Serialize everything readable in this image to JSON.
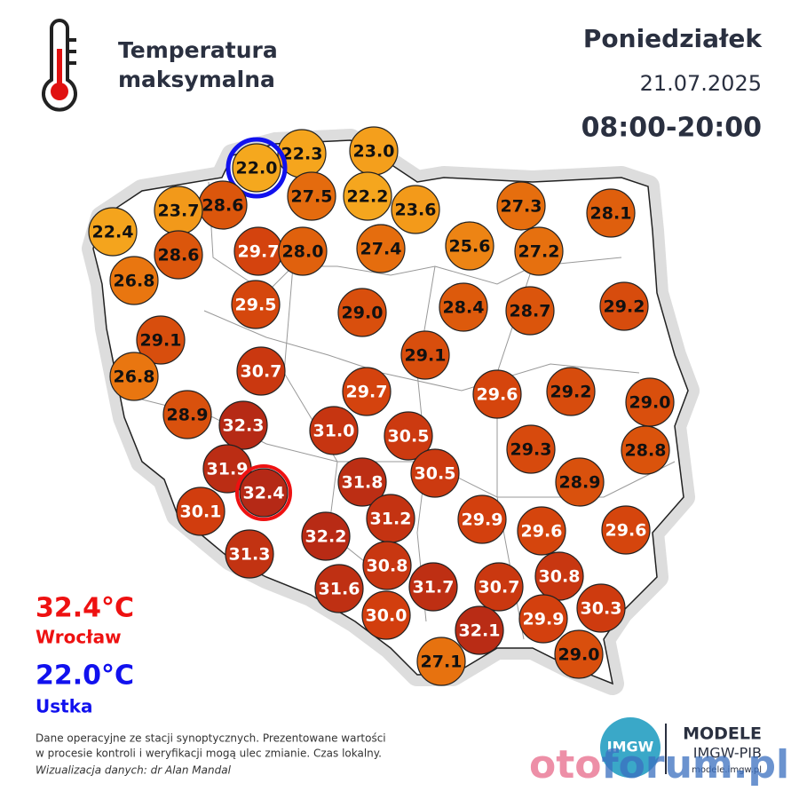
{
  "header": {
    "title_lines": [
      "Temperatura",
      "maksymalna"
    ],
    "day": "Poniedziałek",
    "date": "21.07.2025",
    "hours": "08:00-20:00"
  },
  "extremes": {
    "max": {
      "label": "32.4°C",
      "station": "Wrocław",
      "color": "#ee1111"
    },
    "min": {
      "label": "22.0°C",
      "station": "Ustka",
      "color": "#1111ee"
    }
  },
  "stations": [
    {
      "value": 22.3,
      "label": "22.3"
    },
    {
      "value": 23,
      "label": "23.0"
    },
    {
      "value": 22,
      "label": "22.0"
    },
    {
      "value": 27.5,
      "label": "27.5"
    },
    {
      "value": 22.2,
      "label": "22.2"
    },
    {
      "value": 28.6,
      "label": "28.6"
    },
    {
      "value": 23.7,
      "label": "23.7"
    },
    {
      "value": 23.6,
      "label": "23.6"
    },
    {
      "value": 27.3,
      "label": "27.3"
    },
    {
      "value": 28.1,
      "label": "28.1"
    },
    {
      "value": 22.4,
      "label": "22.4"
    },
    {
      "value": 28.6,
      "label": "28.6"
    },
    {
      "value": 29.7,
      "label": "29.7"
    },
    {
      "value": 28,
      "label": "28.0"
    },
    {
      "value": 27.4,
      "label": "27.4"
    },
    {
      "value": 25.6,
      "label": "25.6"
    },
    {
      "value": 27.2,
      "label": "27.2"
    },
    {
      "value": 26.8,
      "label": "26.8"
    },
    {
      "value": 29.5,
      "label": "29.5"
    },
    {
      "value": 29,
      "label": "29.0"
    },
    {
      "value": 28.4,
      "label": "28.4"
    },
    {
      "value": 28.7,
      "label": "28.7"
    },
    {
      "value": 29.2,
      "label": "29.2"
    },
    {
      "value": 29.1,
      "label": "29.1"
    },
    {
      "value": 29.1,
      "label": "29.1"
    },
    {
      "value": 26.8,
      "label": "26.8"
    },
    {
      "value": 30.7,
      "label": "30.7"
    },
    {
      "value": 29.7,
      "label": "29.7"
    },
    {
      "value": 29.6,
      "label": "29.6"
    },
    {
      "value": 29.2,
      "label": "29.2"
    },
    {
      "value": 29,
      "label": "29.0"
    },
    {
      "value": 28.9,
      "label": "28.9"
    },
    {
      "value": 32.3,
      "label": "32.3"
    },
    {
      "value": 31,
      "label": "31.0"
    },
    {
      "value": 30.5,
      "label": "30.5"
    },
    {
      "value": 29.3,
      "label": "29.3"
    },
    {
      "value": 28.8,
      "label": "28.8"
    },
    {
      "value": 31.9,
      "label": "31.9"
    },
    {
      "value": 32.4,
      "label": "32.4"
    },
    {
      "value": 31.8,
      "label": "31.8"
    },
    {
      "value": 30.5,
      "label": "30.5"
    },
    {
      "value": 28.9,
      "label": "28.9"
    },
    {
      "value": 30.1,
      "label": "30.1"
    },
    {
      "value": 31.2,
      "label": "31.2"
    },
    {
      "value": 29.9,
      "label": "29.9"
    },
    {
      "value": 29.6,
      "label": "29.6"
    },
    {
      "value": 29.6,
      "label": "29.6"
    },
    {
      "value": 32.2,
      "label": "32.2"
    },
    {
      "value": 31.3,
      "label": "31.3"
    },
    {
      "value": 30.8,
      "label": "30.8"
    },
    {
      "value": 30.8,
      "label": "30.8"
    },
    {
      "value": 31.6,
      "label": "31.6"
    },
    {
      "value": 31.7,
      "label": "31.7"
    },
    {
      "value": 30.7,
      "label": "30.7"
    },
    {
      "value": 30.3,
      "label": "30.3"
    },
    {
      "value": 30,
      "label": "30.0"
    },
    {
      "value": 29.9,
      "label": "29.9"
    },
    {
      "value": 32.1,
      "label": "32.1"
    },
    {
      "value": 29,
      "label": "29.0"
    },
    {
      "value": 27.1,
      "label": "27.1"
    }
  ],
  "footer": {
    "lines": [
      "Dane operacyjne ze stacji synoptycznych. Prezentowane wartości",
      "w procesie kontroli i weryfikacji mogą ulec zmianie. Czas lokalny."
    ],
    "credit": "Wizualizacja danych: dr Alan Mandal"
  },
  "logo": {
    "badge": "IMGW",
    "name": "MODELE",
    "org": "IMGW-PIB",
    "url": "modele.imgw.pl"
  },
  "watermark": {
    "left": "oto",
    "right": "forum.pl"
  }
}
